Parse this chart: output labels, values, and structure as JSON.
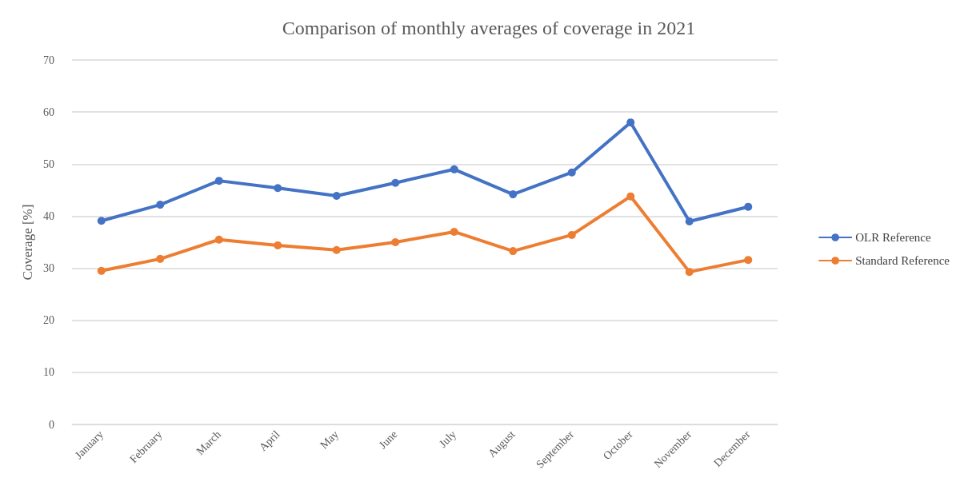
{
  "chart_data": {
    "type": "line",
    "title": "Comparison of monthly averages of coverage in 2021",
    "ylabel": "Coverage [%]",
    "categories": [
      "January",
      "February",
      "March",
      "April",
      "May",
      "June",
      "July",
      "August",
      "September",
      "October",
      "November",
      "December"
    ],
    "series": [
      {
        "name": "OLR Reference",
        "color": "#4472c4",
        "values": [
          39.1,
          42.2,
          46.8,
          45.4,
          43.9,
          46.4,
          49.0,
          44.2,
          48.4,
          58.0,
          39.0,
          41.8
        ]
      },
      {
        "name": "Standard Reference",
        "color": "#ed7d31",
        "values": [
          29.5,
          31.8,
          35.5,
          34.4,
          33.5,
          35.0,
          37.0,
          33.3,
          36.4,
          43.8,
          29.3,
          31.6
        ]
      }
    ],
    "ylim": [
      0,
      70
    ],
    "yticks": [
      0,
      10,
      20,
      30,
      40,
      50,
      60,
      70
    ],
    "grid": "y",
    "legend": "right",
    "marker": "circle",
    "line_style": "solid"
  }
}
